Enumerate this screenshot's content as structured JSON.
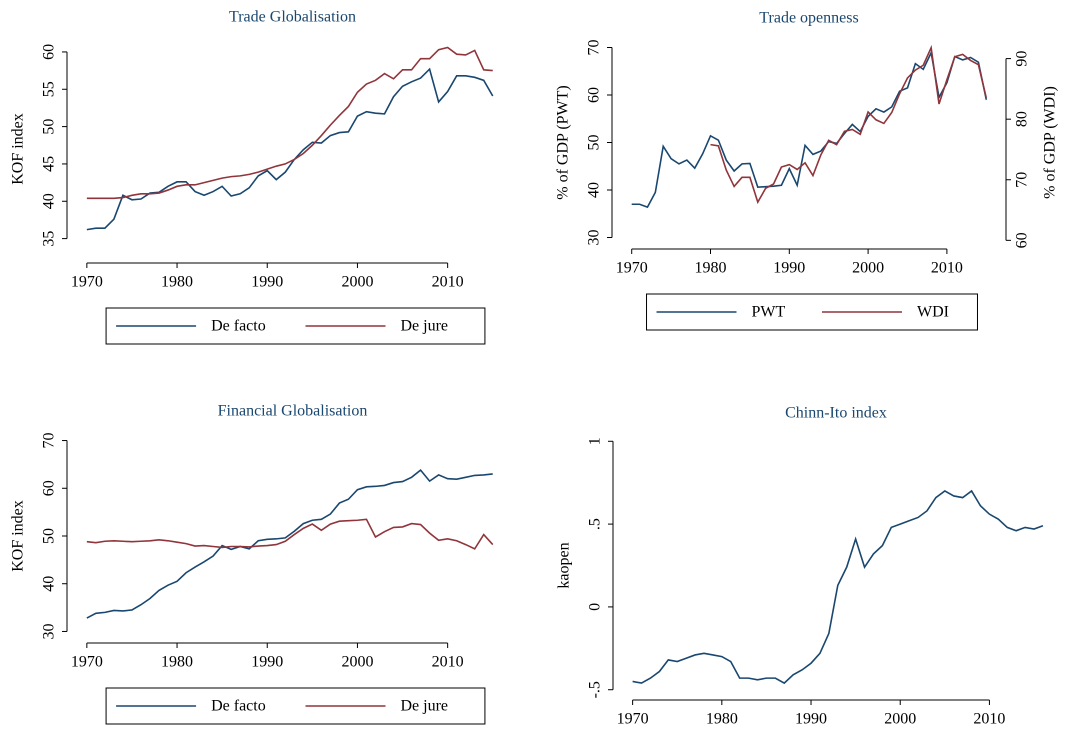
{
  "chart_data": [
    {
      "type": "line",
      "title": "Trade Globalisation",
      "ylabel": "KOF index",
      "legend": "bottom",
      "x": [
        1970,
        1971,
        1972,
        1973,
        1974,
        1975,
        1976,
        1977,
        1978,
        1979,
        1980,
        1981,
        1982,
        1983,
        1984,
        1985,
        1986,
        1987,
        1988,
        1989,
        1990,
        1991,
        1992,
        1993,
        1994,
        1995,
        1996,
        1997,
        1998,
        1999,
        2000,
        2001,
        2002,
        2003,
        2004,
        2005,
        2006,
        2007,
        2008,
        2009,
        2010,
        2011,
        2012,
        2013,
        2014,
        2015
      ],
      "series": [
        {
          "name": "De facto",
          "color": "#1a476f",
          "values": [
            36.2,
            36.4,
            36.4,
            37.6,
            40.8,
            40.2,
            40.3,
            41.1,
            41.2,
            42.0,
            42.6,
            42.6,
            41.3,
            40.8,
            41.3,
            42.0,
            40.7,
            41.0,
            41.8,
            43.4,
            44.1,
            42.9,
            43.9,
            45.6,
            46.9,
            47.9,
            47.8,
            48.8,
            49.2,
            49.3,
            51.4,
            52.0,
            51.8,
            51.7,
            54.0,
            55.4,
            56.0,
            56.5,
            57.7,
            53.3,
            54.7,
            56.8,
            56.8,
            56.6,
            56.2,
            54.1
          ]
        },
        {
          "name": "De jure",
          "color": "#90353b",
          "values": [
            40.4,
            40.4,
            40.4,
            40.4,
            40.5,
            40.8,
            41.0,
            41.0,
            41.1,
            41.5,
            42.0,
            42.2,
            42.2,
            42.5,
            42.8,
            43.1,
            43.3,
            43.4,
            43.6,
            43.9,
            44.3,
            44.7,
            45.0,
            45.6,
            46.4,
            47.5,
            48.8,
            50.2,
            51.5,
            52.7,
            54.6,
            55.7,
            56.2,
            57.1,
            56.4,
            57.6,
            57.6,
            59.1,
            59.1,
            60.3,
            60.6,
            59.7,
            59.6,
            60.2,
            57.6,
            57.5
          ]
        }
      ],
      "xlim": [
        1967.8,
        2017.8
      ],
      "xticks": [
        1970,
        1980,
        1990,
        2000,
        2010
      ],
      "ylim": [
        32,
        62
      ],
      "yticks": [
        35,
        40,
        45,
        50,
        55,
        60
      ]
    },
    {
      "type": "line",
      "title": "Trade openness",
      "ylabel": "% of GDP (PWT)",
      "y2label": "% of GDP (WDI)",
      "legend": "bottom",
      "x": [
        1970,
        1971,
        1972,
        1973,
        1974,
        1975,
        1976,
        1977,
        1978,
        1979,
        1980,
        1981,
        1982,
        1983,
        1984,
        1985,
        1986,
        1987,
        1988,
        1989,
        1990,
        1991,
        1992,
        1993,
        1994,
        1995,
        1996,
        1997,
        1998,
        1999,
        2000,
        2001,
        2002,
        2003,
        2004,
        2005,
        2006,
        2007,
        2008,
        2009,
        2010,
        2011,
        2012,
        2013,
        2014,
        2015
      ],
      "series": [
        {
          "name": "PWT",
          "color": "#1a476f",
          "values": [
            37,
            37,
            36.4,
            39.5,
            49.2,
            46.6,
            45.5,
            46.3,
            44.6,
            47.6,
            51.4,
            50.5,
            46.3,
            44,
            45.5,
            45.6,
            40.6,
            40.7,
            40.8,
            41,
            44.5,
            41,
            49.4,
            47.5,
            48.2,
            50.2,
            49.8,
            51.9,
            53.8,
            52.3,
            55.5,
            57.1,
            56.4,
            57.5,
            60.8,
            61.5,
            66.6,
            65.4,
            68.9,
            59.5,
            62.6,
            68.1,
            67.4,
            67.9,
            66.9,
            59
          ]
        },
        {
          "name": "WDI",
          "color": "#90353b",
          "axis": "y2",
          "values": [
            null,
            null,
            null,
            null,
            null,
            null,
            null,
            null,
            null,
            null,
            75.8,
            75.6,
            71.6,
            68.9,
            70.4,
            70.4,
            66.3,
            68.6,
            69.3,
            72.1,
            72.5,
            71.7,
            72.8,
            70.7,
            74.1,
            76.5,
            75.8,
            78.0,
            78.3,
            77.5,
            81.2,
            79.9,
            79.3,
            81.1,
            84.2,
            86.8,
            88.1,
            88.9,
            91.8,
            82.5,
            86.5,
            90.3,
            90.7,
            89.7,
            89.0,
            83.5
          ]
        }
      ],
      "xlim": [
        1967.5,
        2017.5
      ],
      "xticks": [
        1970,
        1980,
        1990,
        2000,
        2010
      ],
      "ylim": [
        28,
        72
      ],
      "yticks": [
        30,
        40,
        50,
        60,
        70
      ],
      "y2lim": [
        58.9,
        93.4
      ],
      "y2ticks": [
        60,
        70,
        80,
        90
      ]
    },
    {
      "type": "line",
      "title": "Financial Globalisation",
      "ylabel": "KOF index",
      "legend": "bottom",
      "x": [
        1970,
        1971,
        1972,
        1973,
        1974,
        1975,
        1976,
        1977,
        1978,
        1979,
        1980,
        1981,
        1982,
        1983,
        1984,
        1985,
        1986,
        1987,
        1988,
        1989,
        1990,
        1991,
        1992,
        1993,
        1994,
        1995,
        1996,
        1997,
        1998,
        1999,
        2000,
        2001,
        2002,
        2003,
        2004,
        2005,
        2006,
        2007,
        2008,
        2009,
        2010,
        2011,
        2012,
        2013,
        2014,
        2015
      ],
      "series": [
        {
          "name": "De facto",
          "color": "#1a476f",
          "values": [
            32.8,
            33.8,
            34.0,
            34.4,
            34.3,
            34.5,
            35.6,
            36.9,
            38.6,
            39.7,
            40.5,
            42.3,
            43.5,
            44.6,
            45.8,
            48.0,
            47.2,
            47.8,
            47.3,
            49.0,
            49.3,
            49.4,
            49.6,
            51.0,
            52.6,
            53.3,
            53.5,
            54.6,
            56.9,
            57.7,
            59.7,
            60.3,
            60.4,
            60.6,
            61.2,
            61.4,
            62.3,
            63.8,
            61.5,
            62.8,
            62.0,
            61.9,
            62.3,
            62.7,
            62.8,
            63.0
          ]
        },
        {
          "name": "De jure",
          "color": "#90353b",
          "values": [
            48.8,
            48.6,
            48.9,
            49.0,
            48.9,
            48.8,
            48.9,
            49.0,
            49.2,
            49.0,
            48.7,
            48.4,
            47.9,
            48.0,
            47.8,
            47.6,
            47.8,
            47.8,
            47.7,
            47.9,
            48.0,
            48.2,
            48.9,
            50.3,
            51.6,
            52.5,
            51.2,
            52.5,
            53.1,
            53.2,
            53.3,
            53.5,
            49.8,
            50.9,
            51.8,
            51.9,
            52.6,
            52.4,
            50.6,
            49.1,
            49.4,
            49.0,
            48.2,
            47.3,
            50.3,
            48.2
          ]
        }
      ],
      "xlim": [
        1967.8,
        2017.8
      ],
      "xticks": [
        1970,
        1980,
        1990,
        2000,
        2010
      ],
      "ylim": [
        28,
        72
      ],
      "yticks": [
        30,
        40,
        50,
        60,
        70
      ]
    },
    {
      "type": "line",
      "title": "Chinn-Ito index",
      "ylabel": "kaopen",
      "x": [
        1970,
        1971,
        1972,
        1973,
        1974,
        1975,
        1976,
        1977,
        1978,
        1979,
        1980,
        1981,
        1982,
        1983,
        1984,
        1985,
        1986,
        1987,
        1988,
        1989,
        1990,
        1991,
        1992,
        1993,
        1994,
        1995,
        1996,
        1997,
        1998,
        1999,
        2000,
        2001,
        2002,
        2003,
        2004,
        2005,
        2006,
        2007,
        2008,
        2009,
        2010,
        2011,
        2012,
        2013,
        2014,
        2015,
        2016
      ],
      "series": [
        {
          "color": "#1a476f",
          "values": [
            -0.45,
            -0.46,
            -0.43,
            -0.39,
            -0.32,
            -0.33,
            -0.31,
            -0.29,
            -0.28,
            -0.29,
            -0.3,
            -0.33,
            -0.43,
            -0.43,
            -0.44,
            -0.43,
            -0.43,
            -0.46,
            -0.41,
            -0.38,
            -0.34,
            -0.28,
            -0.16,
            0.13,
            0.24,
            0.41,
            0.24,
            0.32,
            0.37,
            0.48,
            0.5,
            0.52,
            0.54,
            0.58,
            0.66,
            0.7,
            0.67,
            0.66,
            0.7,
            0.61,
            0.56,
            0.53,
            0.48,
            0.46,
            0.48,
            0.47,
            0.49
          ]
        }
      ],
      "xlim": [
        1967.8,
        2017.8
      ],
      "xticks": [
        1970,
        1980,
        1990,
        2000,
        2010
      ],
      "ylim": [
        -0.55,
        1.05
      ],
      "yticks": [
        {
          "value": -0.5,
          "label": "-.5"
        },
        0,
        {
          "value": 0.5,
          "label": ".5"
        },
        1
      ]
    }
  ]
}
